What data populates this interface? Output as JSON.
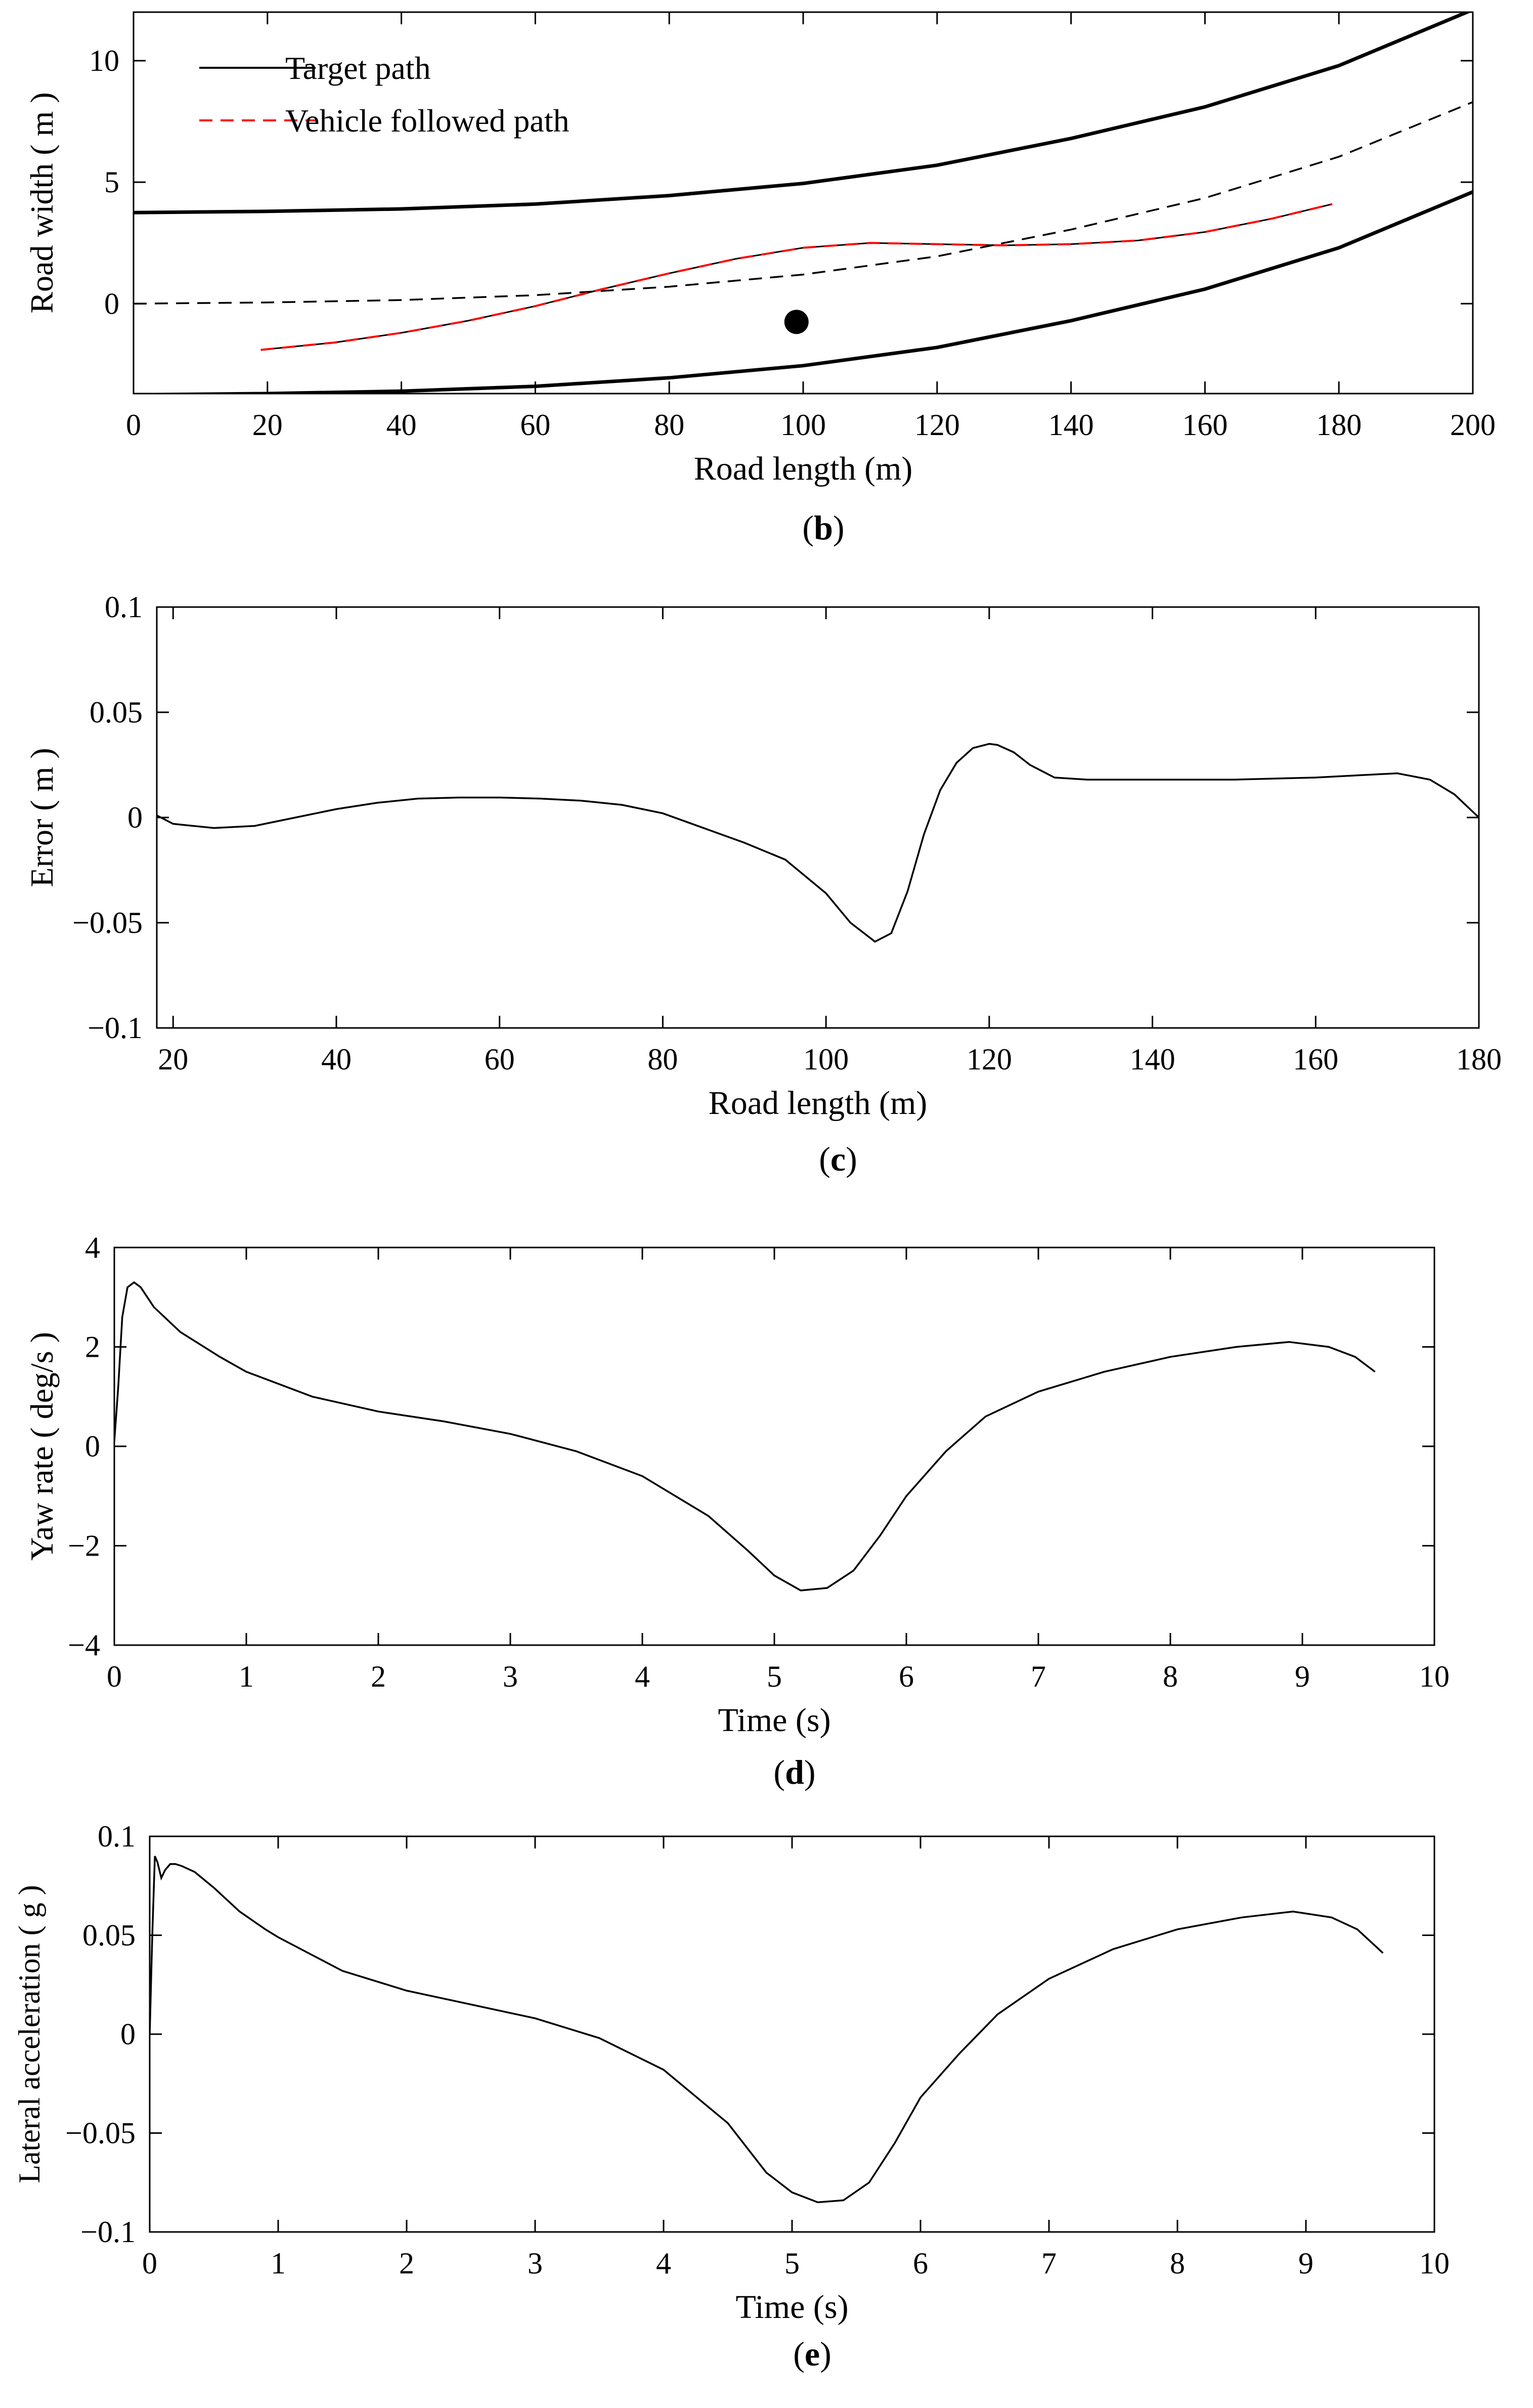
{
  "chart_data": [
    {
      "id": "b",
      "type": "line",
      "caption_letter": "b",
      "xlabel": "Road length (m)",
      "ylabel": "Road width ( m )",
      "xlim": [
        0,
        200
      ],
      "ylim": [
        -3.7,
        12
      ],
      "xticks": [
        0,
        20,
        40,
        60,
        80,
        100,
        120,
        140,
        160,
        180,
        200
      ],
      "yticks": [
        0,
        5,
        10
      ],
      "grid": false,
      "legend": {
        "placement": "top-left",
        "entries": [
          {
            "label": "Target path",
            "series": "upper_boundary"
          },
          {
            "label": "Vehicle followed path",
            "series": "vehicle_path"
          }
        ]
      },
      "series": [
        {
          "name": "upper_boundary",
          "style": "solid",
          "color": "#000000",
          "x": [
            0,
            20,
            40,
            60,
            80,
            100,
            120,
            140,
            160,
            180,
            200
          ],
          "y": [
            3.75,
            3.8,
            3.9,
            4.1,
            4.45,
            4.95,
            5.7,
            6.8,
            8.1,
            9.8,
            12.1
          ]
        },
        {
          "name": "lower_boundary",
          "style": "solid",
          "color": "#000000",
          "x": [
            0,
            20,
            40,
            60,
            80,
            100,
            120,
            140,
            160,
            180,
            200
          ],
          "y": [
            -3.75,
            -3.7,
            -3.6,
            -3.4,
            -3.05,
            -2.55,
            -1.8,
            -0.7,
            0.6,
            2.3,
            4.6
          ]
        },
        {
          "name": "centerline",
          "style": "dashed",
          "color": "#000000",
          "x": [
            0,
            20,
            40,
            60,
            80,
            100,
            120,
            140,
            160,
            180,
            200
          ],
          "y": [
            0,
            0.05,
            0.15,
            0.35,
            0.7,
            1.2,
            1.95,
            3.05,
            4.35,
            6.05,
            8.3
          ]
        },
        {
          "name": "vehicle_path",
          "style": "dashed-red",
          "color": "#ff0000",
          "x": [
            19,
            30,
            40,
            50,
            60,
            70,
            80,
            90,
            100,
            110,
            120,
            130,
            140,
            150,
            160,
            170,
            179
          ],
          "y": [
            -1.9,
            -1.6,
            -1.2,
            -0.7,
            -0.1,
            0.6,
            1.25,
            1.85,
            2.3,
            2.5,
            2.45,
            2.4,
            2.45,
            2.6,
            2.95,
            3.5,
            4.1
          ]
        }
      ],
      "annotations": [
        {
          "type": "marker",
          "shape": "filled-circle",
          "x": 99,
          "y": -0.75
        }
      ]
    },
    {
      "id": "c",
      "type": "line",
      "caption_letter": "c",
      "xlabel": "Road length (m)",
      "ylabel": "Error ( m )",
      "xlim": [
        18,
        180
      ],
      "ylim": [
        -0.1,
        0.1
      ],
      "xticks": [
        20,
        40,
        60,
        80,
        100,
        120,
        140,
        160,
        180
      ],
      "yticks": [
        -0.1,
        -0.05,
        0,
        0.05,
        0.1
      ],
      "ytick_labels": [
        "−0.1",
        "−0.05",
        "0",
        "0.05",
        "0.1"
      ],
      "grid": false,
      "series": [
        {
          "name": "error",
          "style": "solid",
          "color": "#000000",
          "x": [
            18,
            20,
            25,
            30,
            35,
            40,
            45,
            50,
            55,
            60,
            65,
            70,
            75,
            80,
            85,
            90,
            95,
            100,
            103,
            106,
            108,
            110,
            112,
            114,
            116,
            118,
            120,
            121,
            123,
            125,
            128,
            132,
            140,
            150,
            160,
            165,
            170,
            174,
            177,
            180
          ],
          "y": [
            0.001,
            -0.003,
            -0.005,
            -0.004,
            0.0,
            0.004,
            0.007,
            0.009,
            0.0095,
            0.0095,
            0.009,
            0.008,
            0.006,
            0.002,
            -0.005,
            -0.012,
            -0.02,
            -0.036,
            -0.05,
            -0.059,
            -0.055,
            -0.035,
            -0.008,
            0.013,
            0.026,
            0.033,
            0.035,
            0.0345,
            0.031,
            0.025,
            0.019,
            0.018,
            0.018,
            0.018,
            0.019,
            0.02,
            0.021,
            0.018,
            0.011,
            0.0
          ]
        }
      ]
    },
    {
      "id": "d",
      "type": "line",
      "caption_letter": "d",
      "xlabel": "Time (s)",
      "ylabel": "Yaw rate ( deg/s )",
      "xlim": [
        0,
        10
      ],
      "ylim": [
        -4,
        4
      ],
      "xticks": [
        0,
        1,
        2,
        3,
        4,
        5,
        6,
        7,
        8,
        9,
        10
      ],
      "yticks": [
        -4,
        -2,
        0,
        2,
        4
      ],
      "ytick_labels": [
        "−4",
        "−2",
        "0",
        "2",
        "4"
      ],
      "grid": false,
      "series": [
        {
          "name": "yaw_rate",
          "style": "solid",
          "color": "#000000",
          "x": [
            0,
            0.03,
            0.06,
            0.1,
            0.15,
            0.2,
            0.3,
            0.5,
            0.8,
            1.0,
            1.5,
            2.0,
            2.5,
            3.0,
            3.5,
            4.0,
            4.5,
            4.8,
            5.0,
            5.2,
            5.4,
            5.6,
            5.8,
            6.0,
            6.3,
            6.6,
            7.0,
            7.5,
            8.0,
            8.5,
            8.9,
            9.2,
            9.4,
            9.55
          ],
          "y": [
            0.1,
            1.2,
            2.6,
            3.2,
            3.3,
            3.2,
            2.8,
            2.3,
            1.8,
            1.5,
            1.0,
            0.7,
            0.5,
            0.25,
            -0.1,
            -0.6,
            -1.4,
            -2.1,
            -2.6,
            -2.9,
            -2.85,
            -2.5,
            -1.8,
            -1.0,
            -0.1,
            0.6,
            1.1,
            1.5,
            1.8,
            2.0,
            2.1,
            2.0,
            1.8,
            1.5
          ]
        }
      ]
    },
    {
      "id": "e",
      "type": "line",
      "caption_letter": "e",
      "xlabel": "Time (s)",
      "ylabel": "Lateral acceleration ( g )",
      "xlim": [
        0,
        10
      ],
      "ylim": [
        -0.1,
        0.1
      ],
      "xticks": [
        0,
        1,
        2,
        3,
        4,
        5,
        6,
        7,
        8,
        9,
        10
      ],
      "yticks": [
        -0.1,
        -0.05,
        0,
        0.05,
        0.1
      ],
      "ytick_labels": [
        "−0.1",
        "−0.05",
        "0",
        "0.05",
        "0.1"
      ],
      "grid": false,
      "series": [
        {
          "name": "lateral_acceleration",
          "style": "solid",
          "color": "#000000",
          "x": [
            0,
            0.02,
            0.04,
            0.06,
            0.09,
            0.12,
            0.16,
            0.2,
            0.25,
            0.35,
            0.5,
            0.7,
            0.9,
            1.0,
            1.5,
            2.0,
            2.5,
            3.0,
            3.5,
            4.0,
            4.5,
            4.8,
            5.0,
            5.2,
            5.4,
            5.6,
            5.8,
            6.0,
            6.3,
            6.6,
            7.0,
            7.5,
            8.0,
            8.5,
            8.9,
            9.2,
            9.4,
            9.6
          ],
          "y": [
            0.0,
            0.05,
            0.09,
            0.087,
            0.079,
            0.083,
            0.086,
            0.086,
            0.085,
            0.082,
            0.074,
            0.062,
            0.053,
            0.049,
            0.032,
            0.022,
            0.015,
            0.008,
            -0.002,
            -0.018,
            -0.045,
            -0.07,
            -0.08,
            -0.085,
            -0.084,
            -0.075,
            -0.055,
            -0.032,
            -0.01,
            0.01,
            0.028,
            0.043,
            0.053,
            0.059,
            0.062,
            0.059,
            0.053,
            0.041
          ]
        }
      ]
    }
  ]
}
